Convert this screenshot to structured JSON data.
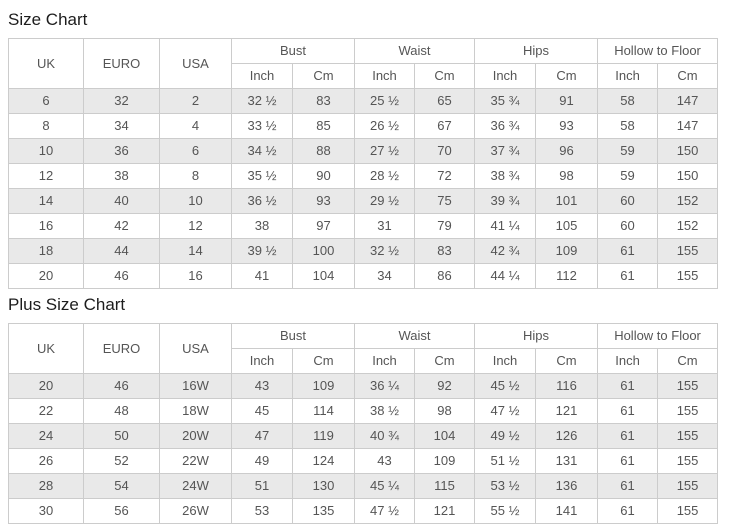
{
  "colors": {
    "row_shade": "#e9e9e9",
    "border": "#cccccc",
    "text": "#555555",
    "title_text": "#1d1d1d"
  },
  "tables": [
    {
      "title": "Size Chart",
      "headers": {
        "uk": "UK",
        "euro": "EURO",
        "usa": "USA",
        "groups": [
          "Bust",
          "Waist",
          "Hips",
          "Hollow to Floor"
        ],
        "inch": "Inch",
        "cm": "Cm"
      },
      "rows": [
        [
          "6",
          "32",
          "2",
          "32 ½",
          "83",
          "25 ½",
          "65",
          "35 ¾",
          "91",
          "58",
          "147"
        ],
        [
          "8",
          "34",
          "4",
          "33 ½",
          "85",
          "26 ½",
          "67",
          "36 ¾",
          "93",
          "58",
          "147"
        ],
        [
          "10",
          "36",
          "6",
          "34 ½",
          "88",
          "27 ½",
          "70",
          "37 ¾",
          "96",
          "59",
          "150"
        ],
        [
          "12",
          "38",
          "8",
          "35 ½",
          "90",
          "28 ½",
          "72",
          "38 ¾",
          "98",
          "59",
          "150"
        ],
        [
          "14",
          "40",
          "10",
          "36 ½",
          "93",
          "29 ½",
          "75",
          "39 ¾",
          "101",
          "60",
          "152"
        ],
        [
          "16",
          "42",
          "12",
          "38",
          "97",
          "31",
          "79",
          "41 ¼",
          "105",
          "60",
          "152"
        ],
        [
          "18",
          "44",
          "14",
          "39 ½",
          "100",
          "32 ½",
          "83",
          "42 ¾",
          "109",
          "61",
          "155"
        ],
        [
          "20",
          "46",
          "16",
          "41",
          "104",
          "34",
          "86",
          "44 ¼",
          "112",
          "61",
          "155"
        ]
      ]
    },
    {
      "title": "Plus Size Chart",
      "headers": {
        "uk": "UK",
        "euro": "EURO",
        "usa": "USA",
        "groups": [
          "Bust",
          "Waist",
          "Hips",
          "Hollow to Floor"
        ],
        "inch": "Inch",
        "cm": "Cm"
      },
      "rows": [
        [
          "20",
          "46",
          "16W",
          "43",
          "109",
          "36 ¼",
          "92",
          "45 ½",
          "116",
          "61",
          "155"
        ],
        [
          "22",
          "48",
          "18W",
          "45",
          "114",
          "38 ½",
          "98",
          "47 ½",
          "121",
          "61",
          "155"
        ],
        [
          "24",
          "50",
          "20W",
          "47",
          "119",
          "40 ¾",
          "104",
          "49 ½",
          "126",
          "61",
          "155"
        ],
        [
          "26",
          "52",
          "22W",
          "49",
          "124",
          "43",
          "109",
          "51 ½",
          "131",
          "61",
          "155"
        ],
        [
          "28",
          "54",
          "24W",
          "51",
          "130",
          "45 ¼",
          "115",
          "53 ½",
          "136",
          "61",
          "155"
        ],
        [
          "30",
          "56",
          "26W",
          "53",
          "135",
          "47 ½",
          "121",
          "55 ½",
          "141",
          "61",
          "155"
        ]
      ]
    }
  ]
}
